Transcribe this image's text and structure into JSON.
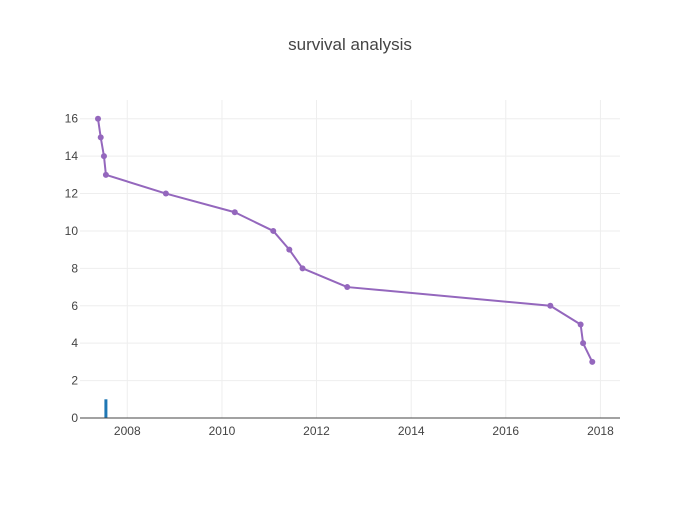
{
  "chart_data": {
    "type": "line",
    "title": "survival analysis",
    "xlabel": "",
    "ylabel": "",
    "x_is_date": true,
    "xlim": [
      "2007-01-01",
      "2018-06-01"
    ],
    "ylim": [
      0,
      17
    ],
    "xticks": [
      {
        "value": "2008-01-01",
        "label": "2008"
      },
      {
        "value": "2010-01-01",
        "label": "2010"
      },
      {
        "value": "2012-01-01",
        "label": "2012"
      },
      {
        "value": "2014-01-01",
        "label": "2014"
      },
      {
        "value": "2016-01-01",
        "label": "2016"
      },
      {
        "value": "2018-01-01",
        "label": "2018"
      }
    ],
    "yticks": [
      0,
      2,
      4,
      6,
      8,
      10,
      12,
      14,
      16
    ],
    "grid": true,
    "series": [
      {
        "type": "line+markers",
        "color": "#9467bd",
        "x": [
          "2007-05-20",
          "2007-06-10",
          "2007-07-05",
          "2007-07-20",
          "2008-10-25",
          "2010-04-10",
          "2011-02-01",
          "2011-06-05",
          "2011-09-15",
          "2012-08-25",
          "2016-12-10",
          "2017-08-01",
          "2017-08-20",
          "2017-10-30"
        ],
        "y": [
          16,
          15,
          14,
          13,
          12,
          11,
          10,
          9,
          8,
          7,
          6,
          5,
          4,
          3
        ]
      },
      {
        "type": "bar",
        "color": "#1f77b4",
        "x": [
          "2007-07-20"
        ],
        "y": [
          1
        ]
      }
    ]
  }
}
